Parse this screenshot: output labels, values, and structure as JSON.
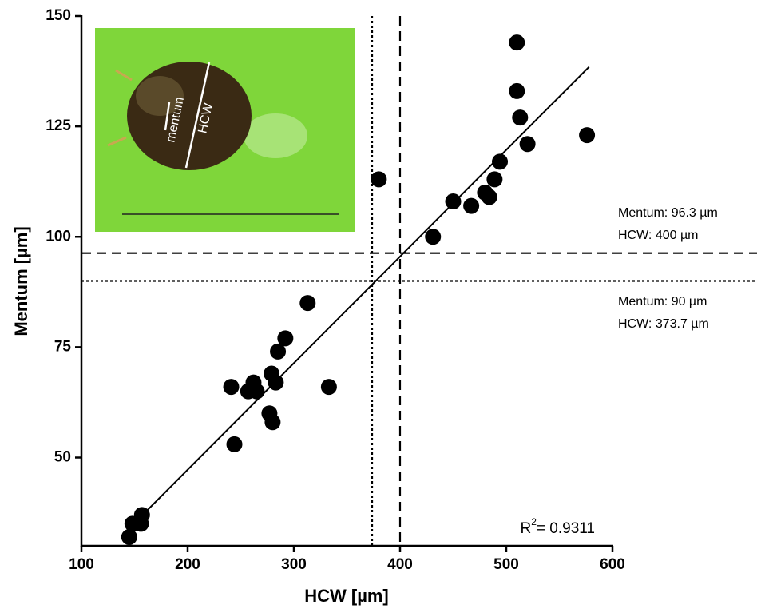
{
  "chart_data": {
    "type": "scatter",
    "x_label": "HCW [µm]",
    "y_label": "Mentum [µm]",
    "x": [
      145,
      148,
      156,
      157,
      244,
      241,
      257,
      262,
      265,
      277,
      280,
      279,
      283,
      285,
      292,
      313,
      333,
      380,
      431,
      450,
      467,
      480,
      484,
      489,
      494,
      510,
      510,
      513,
      520,
      576
    ],
    "y": [
      32,
      35,
      35,
      37,
      53,
      66,
      65,
      67,
      65,
      60,
      58,
      69,
      67,
      74,
      77,
      85,
      66,
      113,
      100,
      108,
      107,
      110,
      109,
      113,
      117,
      133,
      144,
      127,
      121,
      123
    ],
    "color": "#000000",
    "xlim": [
      100,
      600
    ],
    "ylim": [
      30,
      150
    ],
    "xticks": [
      100,
      200,
      300,
      400,
      500,
      600
    ],
    "yticks": [
      50,
      75,
      100,
      125,
      150
    ],
    "fit": {
      "x": [
        141,
        578
      ],
      "y": [
        33,
        138.5
      ]
    },
    "ref_lines": [
      {
        "axis": "x",
        "value": 400,
        "style": "dashed"
      },
      {
        "axis": "x",
        "value": 373.7,
        "style": "dotted"
      },
      {
        "axis": "y",
        "value": 96.3,
        "style": "dashed"
      },
      {
        "axis": "y",
        "value": 90,
        "style": "dotted"
      }
    ],
    "annotations": [
      "Mentum: 96.3 µm",
      "HCW: 400 µm",
      "Mentum: 90 µm",
      "HCW: 373.7 µm"
    ],
    "r_squared": {
      "symbol": "R",
      "exponent": "2",
      "text": "= 0.9311"
    },
    "inset_labels": [
      "mentum",
      "HCW"
    ]
  }
}
